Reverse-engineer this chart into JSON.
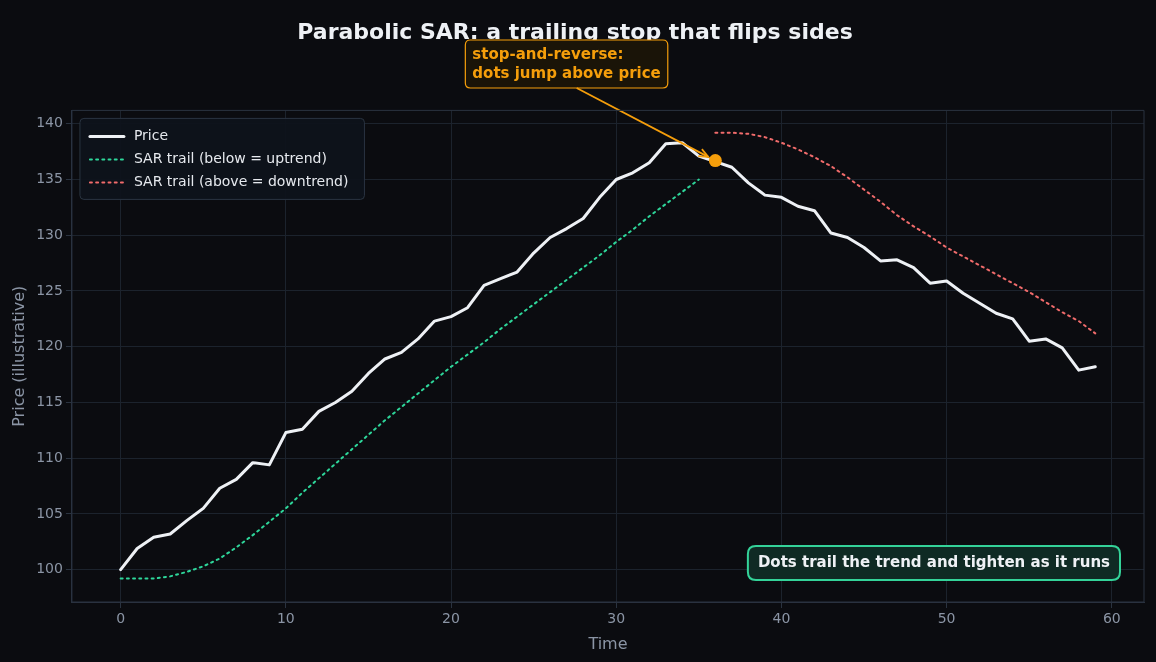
{
  "chart_data": {
    "type": "line",
    "title": "Parabolic SAR: a trailing stop that flips sides",
    "xlabel": "Time",
    "ylabel": "Price (illustrative)",
    "xlim": [
      -2.95,
      61.95
    ],
    "ylim": [
      97.1,
      141.2
    ],
    "xticks": [
      0,
      10,
      20,
      30,
      40,
      50,
      60
    ],
    "yticks": [
      100,
      105,
      110,
      115,
      120,
      125,
      130,
      135,
      140
    ],
    "grid": true,
    "legend": "top left",
    "marker": "none",
    "series": [
      {
        "name": "Price",
        "color": "#eef1f5",
        "line_style": "solid",
        "x": [
          0,
          1,
          2,
          3,
          4,
          5,
          6,
          7,
          8,
          9,
          10,
          11,
          12,
          13,
          14,
          15,
          16,
          17,
          18,
          19,
          20,
          21,
          22,
          23,
          24,
          25,
          26,
          27,
          28,
          29,
          30,
          31,
          32,
          33,
          34,
          35,
          36,
          37,
          38,
          39,
          40,
          41,
          42,
          43,
          44,
          45,
          46,
          47,
          48,
          49,
          50,
          51,
          52,
          53,
          54,
          55,
          56,
          57,
          58,
          59
        ],
        "values": [
          100,
          101.9,
          102.9,
          103.2,
          104.4,
          105.5,
          107.3,
          108.1,
          109.6,
          109.4,
          112.3,
          112.6,
          114.2,
          115,
          116,
          117.6,
          118.9,
          119.5,
          120.7,
          122.3,
          122.7,
          123.5,
          125.5,
          126.1,
          126.7,
          128.4,
          129.8,
          130.6,
          131.5,
          133.4,
          135,
          135.6,
          136.5,
          138.2,
          138.3,
          137.1,
          136.6,
          136.1,
          134.7,
          133.6,
          133.4,
          132.6,
          132.2,
          130.2,
          129.8,
          128.9,
          127.7,
          127.8,
          127.1,
          125.7,
          125.9,
          124.8,
          123.9,
          123,
          122.5,
          120.5,
          120.7,
          119.9,
          117.9,
          118.2
        ]
      },
      {
        "name": "SAR trail (below = uptrend)",
        "color": "#2ed69a",
        "line_style": "dotted",
        "x": [
          0,
          1,
          2,
          3,
          4,
          5,
          6,
          7,
          8,
          9,
          10,
          11,
          12,
          13,
          14,
          15,
          16,
          17,
          18,
          19,
          20,
          21,
          22,
          23,
          24,
          25,
          26,
          27,
          28,
          29,
          30,
          31,
          32,
          33,
          34,
          35
        ],
        "values": [
          99.2,
          99.2,
          99.2,
          99.4,
          99.8,
          100.3,
          101,
          102,
          103.1,
          104.3,
          105.5,
          106.9,
          108.2,
          109.5,
          110.8,
          112.1,
          113.4,
          114.6,
          115.8,
          117,
          118.2,
          119.3,
          120.4,
          121.6,
          122.7,
          123.8,
          124.9,
          126,
          127.1,
          128.2,
          129.4,
          130.5,
          131.7,
          132.8,
          133.9,
          135
        ]
      },
      {
        "name": "SAR trail (above = downtrend)",
        "color": "#f06b6b",
        "line_style": "dotted",
        "x": [
          36,
          37,
          38,
          39,
          40,
          41,
          42,
          43,
          44,
          45,
          46,
          47,
          48,
          49,
          50,
          51,
          52,
          53,
          54,
          55,
          56,
          57,
          58,
          59
        ],
        "values": [
          139.2,
          139.2,
          139.1,
          138.8,
          138.3,
          137.7,
          137,
          136.2,
          135.2,
          134.1,
          133,
          131.8,
          130.8,
          129.9,
          128.9,
          128.1,
          127.3,
          126.5,
          125.7,
          124.9,
          124,
          123.1,
          122.3,
          121.2
        ]
      }
    ],
    "annotations": [
      {
        "text": "stop-and-reverse:\ndots jump above price",
        "x": 36,
        "y": 136.7
      },
      "Dots trail the trend and tighten as it runs"
    ]
  }
}
